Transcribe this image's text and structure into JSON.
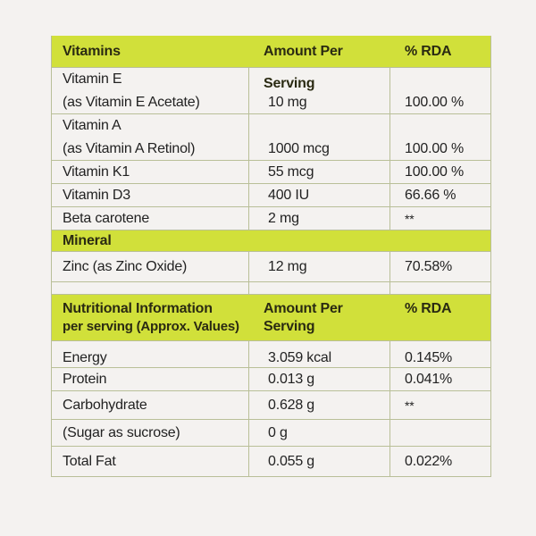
{
  "vitamins_table": {
    "header": {
      "name": "Vitamins",
      "amount": "Amount Per Serving",
      "rda": "% RDA"
    },
    "rows": [
      {
        "name_line1": "Vitamin E",
        "name_line2": "(as Vitamin E Acetate)",
        "amount": "10 mg",
        "rda": "100.00 %"
      },
      {
        "name_line1": "Vitamin A",
        "name_line2": "(as Vitamin A Retinol)",
        "amount": "1000 mcg",
        "rda": "100.00 %"
      },
      {
        "name": "Vitamin K1",
        "amount": "55 mcg",
        "rda": "100.00 %"
      },
      {
        "name": "Vitamin D3",
        "amount": "400 IU",
        "rda": "66.66 %"
      },
      {
        "name": "Beta carotene",
        "amount": "2 mg",
        "rda": "**"
      }
    ]
  },
  "mineral_table": {
    "header": {
      "name": "Mineral"
    },
    "rows": [
      {
        "name": "Zinc (as Zinc Oxide)",
        "amount": "12 mg",
        "rda": "70.58%"
      }
    ]
  },
  "nutrition_table": {
    "header": {
      "name_line1": "Nutritional Information",
      "name_line2": "per serving (Approx. Values)",
      "amount": "Amount Per Serving",
      "rda": "% RDA"
    },
    "rows": [
      {
        "name": "Energy",
        "amount": "3.059 kcal",
        "rda": "0.145%"
      },
      {
        "name": "Protein",
        "amount": "0.013 g",
        "rda": "0.041%"
      },
      {
        "name": "Carbohydrate",
        "amount": "0.628 g",
        "rda": "**"
      },
      {
        "name": "(Sugar as sucrose)",
        "amount": "0 g",
        "rda": ""
      },
      {
        "name": "Total Fat",
        "amount": "0.055 g",
        "rda": "0.022%"
      }
    ]
  },
  "colors": {
    "header_bg": "#d1e03a",
    "border": "#b9bf98",
    "page_bg": "#f4f2f0"
  }
}
